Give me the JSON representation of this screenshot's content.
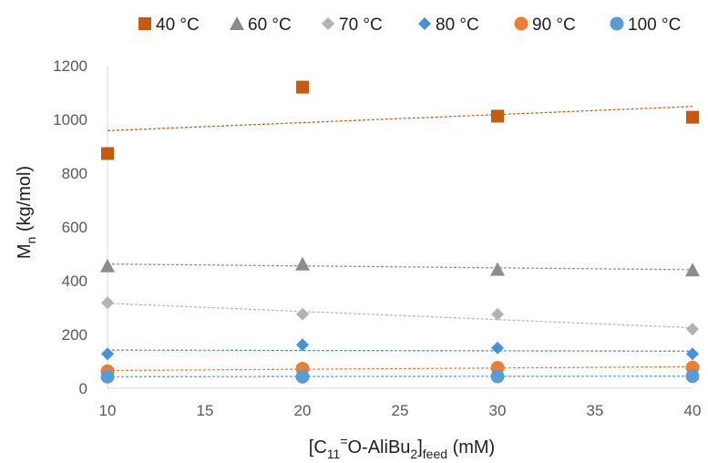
{
  "chart_data": {
    "type": "scatter",
    "title": "",
    "xlabel": {
      "main": "[C",
      "sub1": "11",
      "sup": "=",
      "mid": "O-AliBu",
      "sub2": "2",
      "close": "]",
      "sub3": "feed",
      "tail": " (mM)"
    },
    "ylabel": {
      "main": "M",
      "sub": "n",
      "tail": " (kg/mol)"
    },
    "xlim": [
      10,
      40
    ],
    "ylim": [
      0,
      1200
    ],
    "xticks": [
      10,
      15,
      20,
      25,
      30,
      35,
      40
    ],
    "yticks": [
      0,
      200,
      400,
      600,
      800,
      1000,
      1200
    ],
    "legend_position": "top",
    "grid": false,
    "series": [
      {
        "name": "40 °C",
        "marker": "square",
        "color": "#c55a11",
        "x": [
          10,
          20,
          30,
          40
        ],
        "y": [
          873,
          1120,
          1012,
          1008
        ],
        "trend": [
          958,
          1048
        ]
      },
      {
        "name": "60 °C",
        "marker": "triangle",
        "color": "#8c8c8c",
        "x": [
          10,
          20,
          30,
          40
        ],
        "y": [
          455,
          462,
          442,
          440
        ],
        "trend": [
          462,
          441
        ]
      },
      {
        "name": "70 °C",
        "marker": "diamond",
        "color": "#b3b3b3",
        "x": [
          10,
          20,
          30,
          40
        ],
        "y": [
          318,
          276,
          275,
          220
        ],
        "trend": [
          316,
          225
        ]
      },
      {
        "name": "80 °C",
        "marker": "diamond",
        "color": "#4a90d9",
        "x": [
          10,
          20,
          30,
          40
        ],
        "y": [
          128,
          162,
          150,
          128
        ],
        "trend": [
          142,
          138
        ]
      },
      {
        "name": "90 °C",
        "marker": "circle",
        "color": "#ed7d31",
        "x": [
          10,
          20,
          30,
          40
        ],
        "y": [
          63,
          73,
          76,
          77
        ],
        "trend": [
          66,
          80
        ]
      },
      {
        "name": "100 °C",
        "marker": "circle",
        "color": "#5b9bd5",
        "x": [
          10,
          20,
          30,
          40
        ],
        "y": [
          43,
          43,
          44,
          45
        ],
        "trend": [
          43,
          45
        ]
      }
    ]
  }
}
